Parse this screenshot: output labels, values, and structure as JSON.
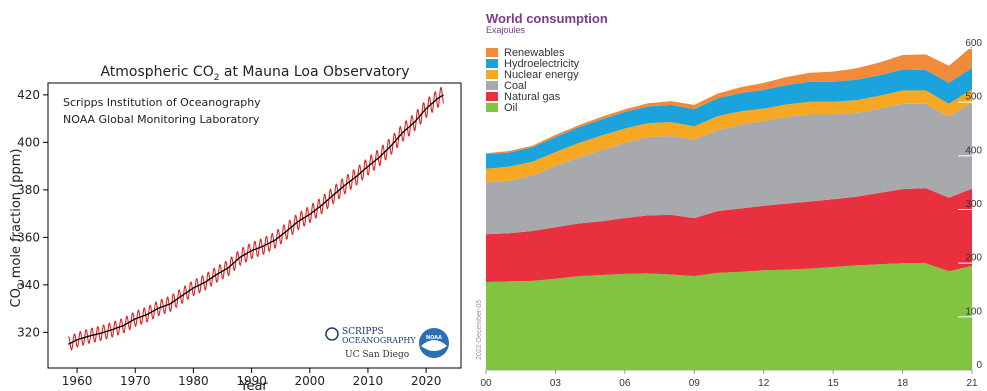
{
  "chart_data": [
    {
      "type": "line",
      "title": "Atmospheric CO",
      "title_sub": "2",
      "title_tail": " at Mauna Loa Observatory",
      "ylabel_pre": "CO",
      "ylabel_sub": "2",
      "ylabel_post": " mole fraction (ppm)",
      "xlabel": "Year",
      "credits": [
        "Scripps Institution of Oceanography",
        "NOAA Global Monitoring Laboratory"
      ],
      "logos": [
        "SCRIPPS",
        "OCEANOGRAPHY",
        "UC San Diego",
        "NOAA"
      ],
      "xlim": [
        1955,
        2026
      ],
      "ylim": [
        305,
        425
      ],
      "xticks": [
        1960,
        1970,
        1980,
        1990,
        2000,
        2010,
        2020
      ],
      "yticks": [
        320,
        340,
        360,
        380,
        400,
        420
      ],
      "grid": false,
      "colors": {
        "seasonal": "#e02020",
        "trend": "#000000"
      },
      "series": [
        {
          "x": [
            1958.5,
            1960,
            1962,
            1964,
            1966,
            1968,
            1970,
            1972,
            1974,
            1976,
            1978,
            1980,
            1982,
            1984,
            1986,
            1988,
            1990,
            1992,
            1994,
            1996,
            1998,
            2000,
            2002,
            2004,
            2006,
            2008,
            2010,
            2012,
            2014,
            2016,
            2018,
            2020,
            2022,
            2023
          ],
          "y": [
            315.0,
            316.9,
            318.4,
            319.6,
            321.1,
            322.9,
            325.7,
            327.5,
            330.2,
            332.0,
            335.4,
            338.7,
            341.1,
            344.4,
            347.2,
            351.6,
            354.4,
            356.3,
            358.8,
            362.6,
            366.7,
            369.7,
            373.4,
            377.7,
            381.9,
            385.6,
            389.9,
            393.8,
            398.6,
            404.2,
            408.5,
            414.2,
            418.5,
            420.0
          ]
        }
      ]
    },
    {
      "type": "area",
      "title": "World consumption",
      "subtitle": "Exajoules",
      "x_labels": [
        "00",
        "03",
        "06",
        "09",
        "12",
        "15",
        "18",
        "21"
      ],
      "years": [
        2000,
        2001,
        2002,
        2003,
        2004,
        2005,
        2006,
        2007,
        2008,
        2009,
        2010,
        2011,
        2012,
        2013,
        2014,
        2015,
        2016,
        2017,
        2018,
        2019,
        2020,
        2021
      ],
      "ylim": [
        0,
        600
      ],
      "yticks": [
        0,
        100,
        200,
        300,
        400,
        500,
        600
      ],
      "side_note": "2022-December-05",
      "legend_position": "top-left",
      "series": [
        {
          "name": "Oil",
          "color": "#82c341",
          "values": [
            164,
            165,
            166,
            170,
            175,
            177,
            179,
            180,
            178,
            175,
            181,
            183,
            186,
            187,
            189,
            192,
            195,
            197,
            199,
            199,
            184,
            194
          ]
        },
        {
          "name": "Natural gas",
          "color": "#e8303e",
          "values": [
            89,
            90,
            93,
            96,
            98,
            100,
            104,
            108,
            111,
            108,
            115,
            118,
            120,
            123,
            125,
            126,
            128,
            133,
            138,
            140,
            137,
            144
          ]
        },
        {
          "name": "Coal",
          "color": "#a7a9ac",
          "values": [
            97,
            98,
            103,
            114,
            123,
            133,
            140,
            146,
            147,
            146,
            151,
            156,
            158,
            162,
            162,
            158,
            156,
            157,
            159,
            157,
            151,
            160
          ]
        },
        {
          "name": "Nuclear energy",
          "color": "#f7a823",
          "values": [
            25,
            26,
            26,
            26,
            27,
            27,
            27,
            26,
            26,
            25,
            26,
            25,
            23,
            23,
            24,
            24,
            24,
            24,
            25,
            25,
            24,
            25
          ]
        },
        {
          "name": "Hydroelectricity",
          "color": "#1aa3dc",
          "values": [
            27,
            26,
            27,
            28,
            29,
            30,
            31,
            31,
            32,
            32,
            33,
            34,
            35,
            36,
            37,
            37,
            38,
            38,
            39,
            38,
            39,
            40
          ]
        },
        {
          "name": "Renewables",
          "color": "#f18a3a",
          "values": [
            2,
            3,
            3,
            4,
            4,
            5,
            5,
            6,
            7,
            8,
            9,
            11,
            13,
            15,
            17,
            19,
            21,
            24,
            27,
            29,
            32,
            40
          ]
        }
      ]
    }
  ]
}
